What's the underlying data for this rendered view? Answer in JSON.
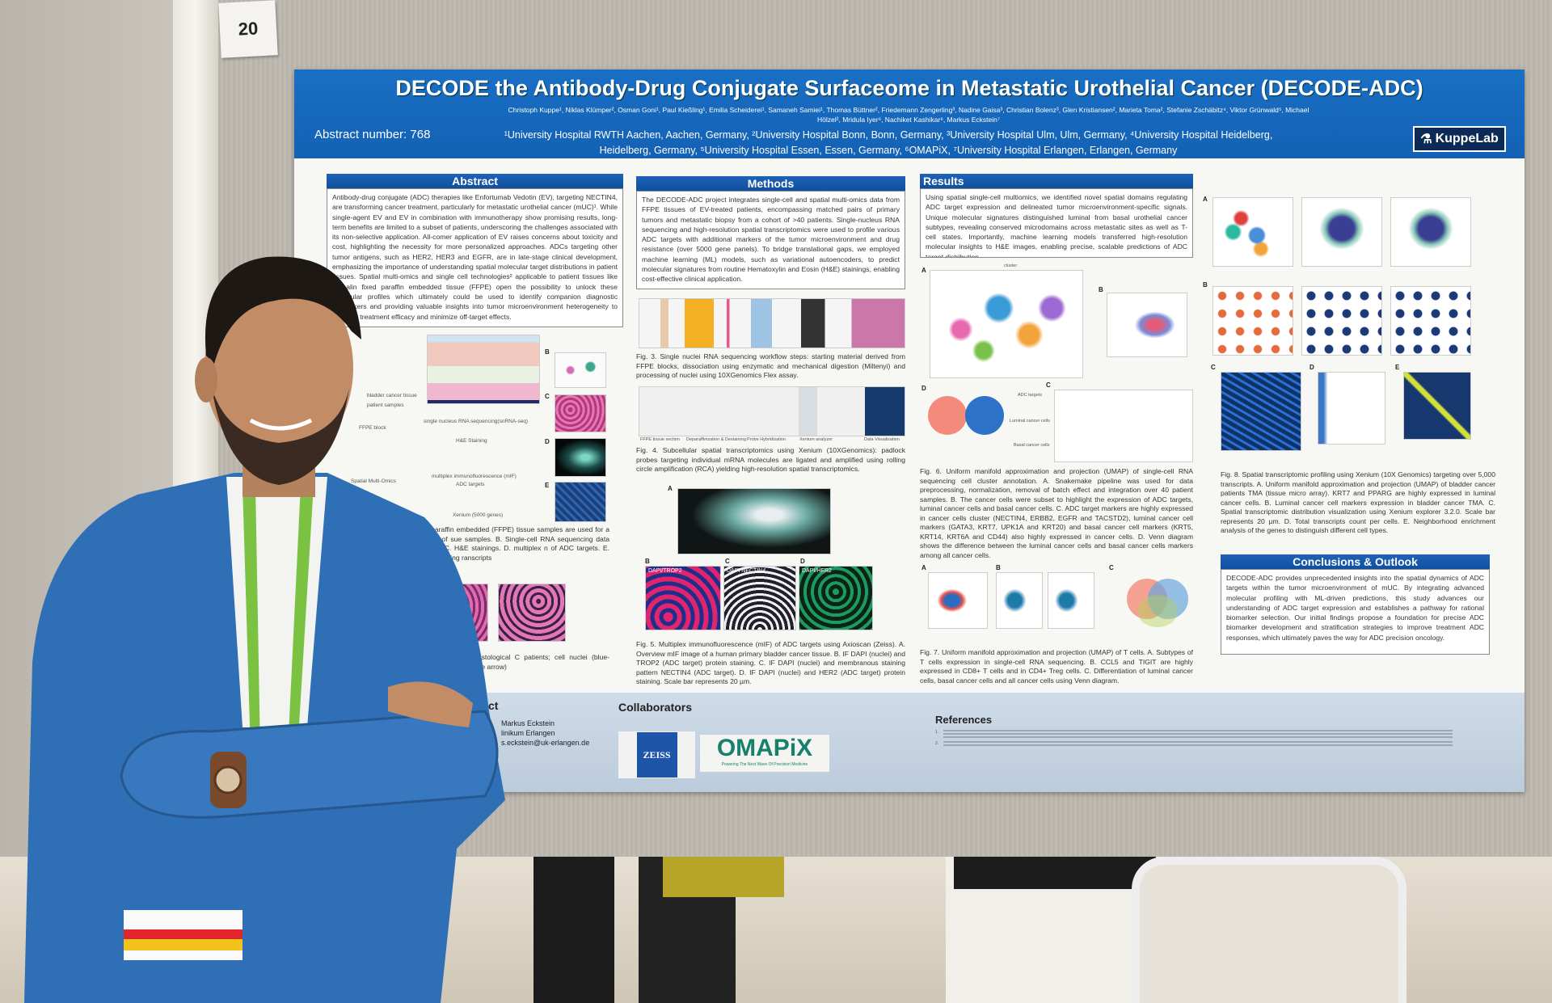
{
  "booth": {
    "number": "20"
  },
  "poster": {
    "title": "DECODE the Antibody-Drug Conjugate Surfaceome in Metastatic Urothelial Cancer (DECODE-ADC)",
    "authors_line1": "Christoph Kuppe¹, Niklas Klümper², Osman Goni¹, Paul Kießling¹, Emilia Scheiderei¹, Samaneh Samiei¹, Thomas Büttner², Friedemann Zengerling³, Nadine Gaisa³, Christian Bolenz³, Glen Kristiansen², Marieta Toma², Stefanie Zschäbitz⁴, Viktor Grünwald⁵, Michael",
    "authors_line2": "Hölzel², Mridula Iyer⁶, Nachiket Kashikar⁶, Markus Eckstein⁷",
    "abstract_number": "Abstract number: 768",
    "affiliations_line1": "¹University Hospital RWTH Aachen, Aachen, Germany, ²University Hospital Bonn, Bonn, Germany, ³University Hospital Ulm, Ulm, Germany, ⁴University Hospital Heidelberg,",
    "affiliations_line2": "Heidelberg, Germany, ⁵University Hospital Essen, Essen, Germany, ⁶OMAPiX, ⁷University Hospital Erlangen, Erlangen, Germany",
    "lab_logo": "KuppeLab",
    "abstract": {
      "heading": "Abstract",
      "body": "Antibody-drug conjugate (ADC) therapies like Enfortumab Vedotin (EV), targeting NECTIN4, are transforming cancer treatment, particularly for metastatic urothelial cancer (mUC)¹. While single-agent EV and EV in combination with immunotherapy show promising results, long-term benefits are limited to a subset of patients, underscoring the challenges associated with its non-selective application. All-comer application of EV raises concerns about toxicity and cost, highlighting the necessity for more personalized approaches. ADCs targeting other tumor antigens, such as HER2, HER3 and EGFR, are in late-stage clinical development, emphasizing the importance of understanding spatial molecular target distributions in patient tissues. Spatial multi-omics and single cell technologies² applicable to patient tissues like formalin fixed paraffin embedded tissue (FFPE) open the possibility to unlock these molecular profiles which ultimately could be used to identify companion diagnostic biomarkers and providing valuable insights into tumor microenvironment heterogeneity to optimize treatment efficacy and minimize off-target effects."
    },
    "methods": {
      "heading": "Methods",
      "body": "The DECODE-ADC project integrates single-cell and spatial multi-omics data from FFPE tissues of EV-treated patients, encompassing matched pairs of primary tumors and metastatic biopsy from a cohort of >40 patients. Single-nucleus RNA sequencing and high-resolution spatial transcriptomics were used to profile various ADC targets with additional markers of the tumor microenvironment and drug resistance (over 5000 gene panels). To bridge translational gaps, we employed machine learning (ML) models, such as variational autoencoders, to predict molecular signatures from routine Hematoxylin and Eosin (H&E) stainings, enabling cost-effective clinical application."
    },
    "fig1": {
      "labels": {
        "tissue": "bladder cancer tissue",
        "samples": "patient samples",
        "ffpe": "FFPE block",
        "snrna": "single nucleus RNA sequencing(snRNA-seq)",
        "he": "H&E Staining",
        "spatial": "Spatial Multi-Omics",
        "mif": "multiplex immunofluorescence (mIF)",
        "adc": "ADC targets",
        "xenium": "Xenium (5000 genes)"
      },
      "panels": [
        "B",
        "C",
        "D",
        "E"
      ],
      "caption": "w. A. Formalin-fixed paraffin embedded (FFPE) tissue samples are used for a spatial-multiomics map of sue samples. B. Single-cell RNA sequencing data was from FFPE blocks. C. H&E stainings. D. multiplex n of ADC targets. E. Spatial transcriptomic profiling ranscripts"
    },
    "fig2": {
      "caption": "mor-microenvironment based on histological C patients; cell nuclei (blue-purple) in blue (pink), tumor cells (blue arrow)"
    },
    "fig3": {
      "caption": "Fig. 3. Single nuclei RNA sequencing workflow steps: starting material derived from FFPE blocks, dissociation using enzymatic and mechanical digestion (Miltenyi) and processing of nuclei using 10XGenomics Flex assay."
    },
    "fig4": {
      "labels": [
        "FFPE tissue section",
        "Deparaffinization & Destaining",
        "Probe Hybridization",
        "Xenium analyzer",
        "Data Visualization"
      ],
      "caption": "Fig. 4. Subcellular spatial transcriptomics using Xenium (10XGenomics): padlock probes targeting individual mRNA molecules are ligated and amplified using rolling circle amplification (RCA) yielding high-resolution spatial transcriptomics."
    },
    "fig5": {
      "panels": [
        "A",
        "B",
        "C",
        "D"
      ],
      "stains": [
        "DAPI/TROP2",
        "DAPI NECTIN4",
        "DAPI/HER2"
      ],
      "caption": "Fig. 5. Multiplex immunofluorescence (mIF) of ADC targets using Axioscan (Zeiss). A. Overview mIF image of a human primary bladder cancer tissue. B. IF DAPI (nuclei) and TROP2 (ADC target) protein staining. C. IF DAPI (nuclei) and membranous staining pattern NECTIN4 (ADC target). D. IF DAPI (nuclei) and HER2 (ADC target) protein staining. Scale bar represents 20 µm."
    },
    "results": {
      "heading": "Results",
      "body": "Using spatial single-cell multiomics, we identified novel spatial domains regulating ADC target expression and delineated tumor microenvironment-specific signals. Unique molecular signatures distinguished luminal from basal urothelial cancer subtypes, revealing conserved microdomains across metastatic sites as well as T-cell states. Importantly, machine learning models transferred high-resolution molecular insights to H&E images, enabling precise, scalable predictions of ADC target distribution."
    },
    "fig6": {
      "panels": [
        "A",
        "B",
        "C",
        "D"
      ],
      "labels": {
        "cluster": "cluster",
        "adc": "ADC targets",
        "luminal": "Luminal cancer cells",
        "basal": "Basal cancer cells"
      },
      "caption": "Fig. 6. Uniform manifold approximation and projection (UMAP) of single-cell RNA sequencing cell cluster annotation. A. Snakemake pipeline was used for data preprocessing, normalization, removal of batch effect and integration over 40 patient samples. B. The cancer cells were subset to highlight the expression of ADC targets, luminal cancer cells and basal cancer cells. C. ADC target markers are highly expressed in cancer cells cluster (NECTIN4, ERBB2, EGFR and TACSTD2), luminal cancer cell markers (GATA3, KRT7, UPK1A and KRT20) and basal cancer cell markers (KRT5, KRT14, KRT6A and CD44) also highly expressed in cancer cells. D. Venn diagram shows the difference between the luminal cancer cells and basal cancer cells markers among all cancer cells."
    },
    "fig7": {
      "panels": [
        "A",
        "B",
        "C"
      ],
      "caption": "Fig. 7. Uniform manifold approximation and projection (UMAP) of T cells. A. Subtypes of T cells expression in single-cell RNA sequencing. B. CCL5 and TIGIT are highly expressed in CD8+ T cells and in CD4+ Treg cells. C. Differentiation of luminal cancer cells, basal cancer cells and all cancer cells using Venn diagram."
    },
    "fig8": {
      "panels": [
        "A",
        "B",
        "C",
        "D",
        "E"
      ],
      "caption": "Fig. 8. Spatial transcriptomic profiling using Xenium (10X Genomics) targeting over 5,000 transcripts. A. Uniform manifold approximation and projection (UMAP) of bladder cancer patients TMA (tissue micro array). KRT7 and PPARG are highly expressed in luminal cancer cells. B. Luminal cancer cell markers expression in bladder cancer TMA. C. Spatial transcriptomic distribution visualization using Xenium explorer 3.2.0. Scale bar represents 20 µm. D. Total transcripts count per cells. E. Neighborhood enrichment analysis of the genes to distinguish different cell types."
    },
    "conclusions": {
      "heading": "Conclusions & Outlook",
      "body": "DECODE-ADC provides unprecedented insights into the spatial dynamics of ADC targets within the tumor microenvironment of mUC. By integrating advanced molecular profiling with ML-driven predictions, this study advances our understanding of ADC target expression and establishes a pathway for rational biomarker selection. Our initial findings propose a foundation for precise ADC biomarker development and stratification strategies to improve treatment ADC responses, which ultimately paves the way for ADC precision oncology."
    },
    "contact": {
      "heading": "ct",
      "name": "Markus Eckstein",
      "institution": "linikum Erlangen",
      "email": "s.eckstein@uk-erlangen.de"
    },
    "collaborators": {
      "heading": "Collaborators",
      "logos": [
        "ZEISS",
        "OMAPiX"
      ],
      "omapix_tagline": "Powering The Next Wave Of Precision Medicine"
    },
    "references": {
      "heading": "References",
      "numbers": [
        "1.",
        "2."
      ]
    }
  },
  "colors": {
    "header_blue": "#1565c0",
    "section_blue": "#1a5cb0",
    "suit_blue": "#2f6fb5",
    "lanyard_green": "#7cc242"
  }
}
